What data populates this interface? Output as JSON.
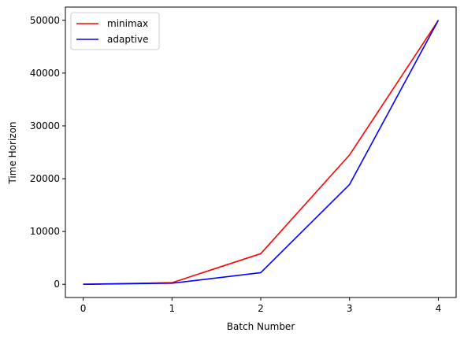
{
  "chart_data": {
    "type": "line",
    "title": "",
    "xlabel": "Batch Number",
    "ylabel": "Time Horizon",
    "x": [
      0,
      1,
      2,
      3,
      4
    ],
    "xlim": [
      -0.2,
      4.2
    ],
    "ylim": [
      -2500,
      52500
    ],
    "xticks": [
      "0",
      "1",
      "2",
      "3",
      "4"
    ],
    "yticks": [
      "0",
      "10000",
      "20000",
      "30000",
      "40000",
      "50000"
    ],
    "grid": false,
    "legend_position": "top-left",
    "series": [
      {
        "name": "minimax",
        "color": "#ff0000",
        "values": [
          0,
          300,
          5800,
          24500,
          50000
        ]
      },
      {
        "name": "adaptive",
        "color": "#0000ff",
        "values": [
          0,
          200,
          2200,
          18900,
          50000
        ]
      }
    ]
  }
}
